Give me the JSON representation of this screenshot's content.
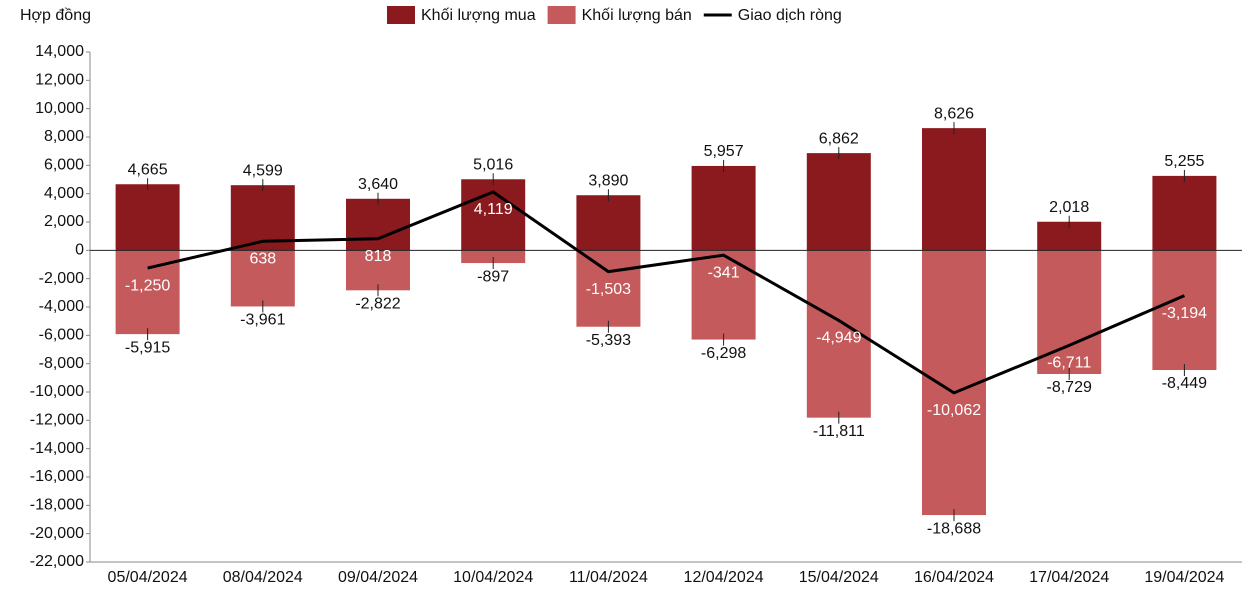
{
  "chart_data": {
    "type": "bar",
    "y_axis_label": "Hợp đồng",
    "categories": [
      "05/04/2024",
      "08/04/2024",
      "09/04/2024",
      "10/04/2024",
      "11/04/2024",
      "12/04/2024",
      "15/04/2024",
      "16/04/2024",
      "17/04/2024",
      "19/04/2024"
    ],
    "series": [
      {
        "name": "Khối lượng mua",
        "color": "#8b1a1f",
        "kind": "bar",
        "values": [
          4665,
          4599,
          3640,
          5016,
          3890,
          5957,
          6862,
          8626,
          2018,
          5255
        ],
        "value_labels": [
          "4,665",
          "4,599",
          "3,640",
          "5,016",
          "3,890",
          "5,957",
          "6,862",
          "8,626",
          "2,018",
          "5,255"
        ]
      },
      {
        "name": "Khối lượng bán",
        "color": "#c45a5b",
        "kind": "bar",
        "values": [
          -5915,
          -3961,
          -2822,
          -897,
          -5393,
          -6298,
          -11811,
          -18688,
          -8729,
          -8449
        ],
        "value_labels": [
          "-5,915",
          "-3,961",
          "-2,822",
          "-897",
          "-5,393",
          "-6,298",
          "-11,811",
          "-18,688",
          "-8,729",
          "-8,449"
        ]
      },
      {
        "name": "Giao dịch ròng",
        "color": "#000000",
        "kind": "line",
        "values": [
          -1250,
          638,
          818,
          4119,
          -1503,
          -341,
          -4949,
          -10062,
          -6711,
          -3194
        ],
        "value_labels": [
          "-1,250",
          "638",
          "818",
          "4,119",
          "-1,503",
          "-341",
          "-4,949",
          "-10,062",
          "-6,711",
          "-3,194"
        ]
      }
    ],
    "ylim": [
      -22000,
      14000
    ],
    "yticks": [
      {
        "value": -22000,
        "label": "-22,000"
      },
      {
        "value": -20000,
        "label": "-20,000"
      },
      {
        "value": -18000,
        "label": "-18,000"
      },
      {
        "value": -16000,
        "label": "-16,000"
      },
      {
        "value": -14000,
        "label": "-14,000"
      },
      {
        "value": -12000,
        "label": "-12,000"
      },
      {
        "value": -10000,
        "label": "-10,000"
      },
      {
        "value": -8000,
        "label": "-8,000"
      },
      {
        "value": -6000,
        "label": "-6,000"
      },
      {
        "value": -4000,
        "label": "-4,000"
      },
      {
        "value": -2000,
        "label": "-2,000"
      },
      0,
      {
        "value": 2000,
        "label": "2,000"
      },
      {
        "value": 4000,
        "label": "4,000"
      },
      {
        "value": 6000,
        "label": "6,000"
      },
      {
        "value": 8000,
        "label": "8,000"
      },
      {
        "value": 10000,
        "label": "10,000"
      },
      {
        "value": 12000,
        "label": "12,000"
      },
      {
        "value": 14000,
        "label": "14,000"
      }
    ]
  }
}
